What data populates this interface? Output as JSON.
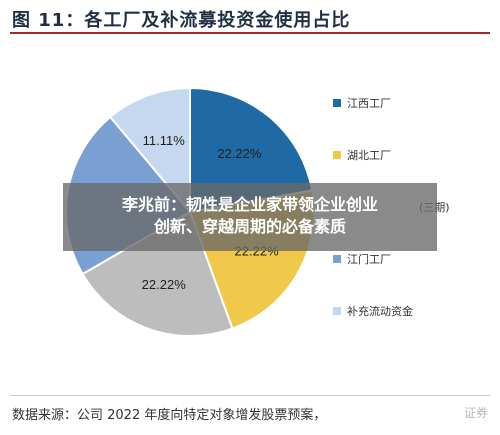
{
  "title": "图 11：各工厂及补流募投资金使用占比",
  "chart_data": {
    "type": "pie",
    "slices": [
      {
        "label": "江西工厂",
        "value": 22.22,
        "color": "#1f6aa5",
        "data_label": "22.22%"
      },
      {
        "label": "湖北工厂",
        "value": 22.22,
        "color": "#f0c94a",
        "data_label": "22.22%"
      },
      {
        "label": "(三期)",
        "value": 22.22,
        "color": "#bdbdbd",
        "data_label": "22.22%"
      },
      {
        "label": "江门工厂",
        "value": 22.22,
        "color": "#7a9fd3",
        "data_label": ""
      },
      {
        "label": "补充流动资金",
        "value": 11.11,
        "color": "#c6d8ef",
        "data_label": "11.11%"
      }
    ]
  },
  "legend": [
    {
      "label": "江西工厂",
      "color": "#1f6aa5"
    },
    {
      "label": "湖北工厂",
      "color": "#f0c94a"
    },
    {
      "label": "(三期)",
      "color": "#bdbdbd"
    },
    {
      "label": "江门工厂",
      "color": "#7a9fd3"
    },
    {
      "label": "补充流动资金",
      "color": "#c6d8ef"
    }
  ],
  "overlay": {
    "line1": "李兆前：韧性是企业家带领企业创业",
    "line2": "创新、穿越周期的必备素质"
  },
  "source": "数据来源：公司 2022 年度向特定对象增发股票预案，",
  "watermark": "证券"
}
